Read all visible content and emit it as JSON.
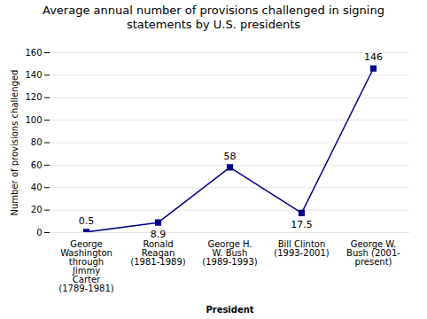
{
  "chart_data": {
    "type": "line",
    "title": "Average annual number of provisions challenged in signing\nstatements by U.S. presidents",
    "xlabel": "President",
    "ylabel": "Number of provisions challenged",
    "categories": [
      "George\nWashington\nthrough\nJimmy\nCarter\n(1789-1981)",
      "Ronald\nReagan\n(1981-1989)",
      "George H.\nW. Bush\n(1989-1993)",
      "Bill Clinton\n(1993-2001)",
      "George W.\nBush (2001-\npresent)"
    ],
    "values": [
      0.5,
      8.9,
      58,
      17.5,
      146
    ],
    "color": "#00008B",
    "marker": "square",
    "data_labels": true,
    "ylim": [
      0,
      160
    ],
    "yticks": [
      0,
      20,
      40,
      60,
      80,
      100,
      120,
      140,
      160
    ],
    "grid": true
  }
}
